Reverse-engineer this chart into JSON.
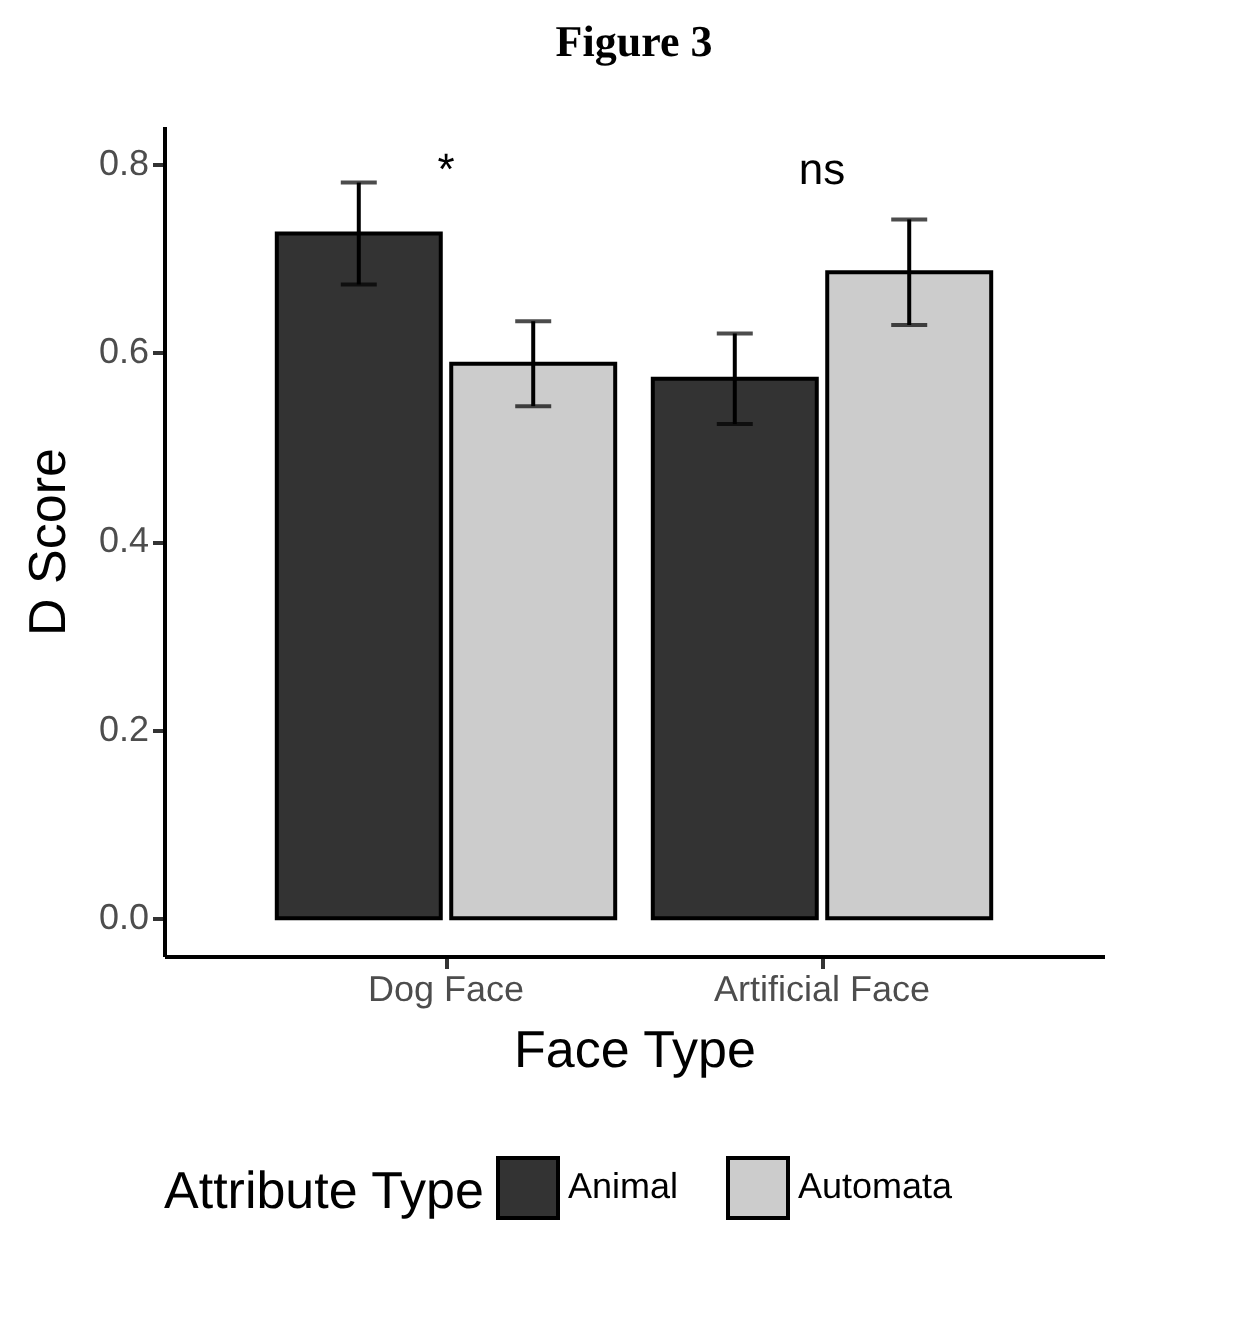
{
  "chart_data": {
    "type": "bar",
    "title": "Figure 3",
    "xlabel": "Face Type",
    "ylabel": "D Score",
    "legend_title": "Attribute Type",
    "categories": [
      "Dog Face",
      "Artificial Face"
    ],
    "series": [
      {
        "name": "Animal",
        "color": "#333333",
        "values": [
          0.726,
          0.572
        ],
        "errors": [
          0.054,
          0.048
        ]
      },
      {
        "name": "Automata",
        "color": "#cccccc",
        "values": [
          0.588,
          0.685
        ],
        "errors": [
          0.045,
          0.056
        ]
      }
    ],
    "ylim": [
      -0.04,
      0.84
    ],
    "yticks": [
      {
        "value": 0,
        "label": "0.0"
      },
      {
        "value": 0.2,
        "label": "0.2"
      },
      {
        "value": 0.4,
        "label": "0.4"
      },
      {
        "value": 0.6,
        "label": "0.6"
      },
      {
        "value": 0.8,
        "label": "0.8"
      }
    ],
    "annotations": [
      "*",
      "ns"
    ],
    "grid": false,
    "legend": "bottom"
  }
}
